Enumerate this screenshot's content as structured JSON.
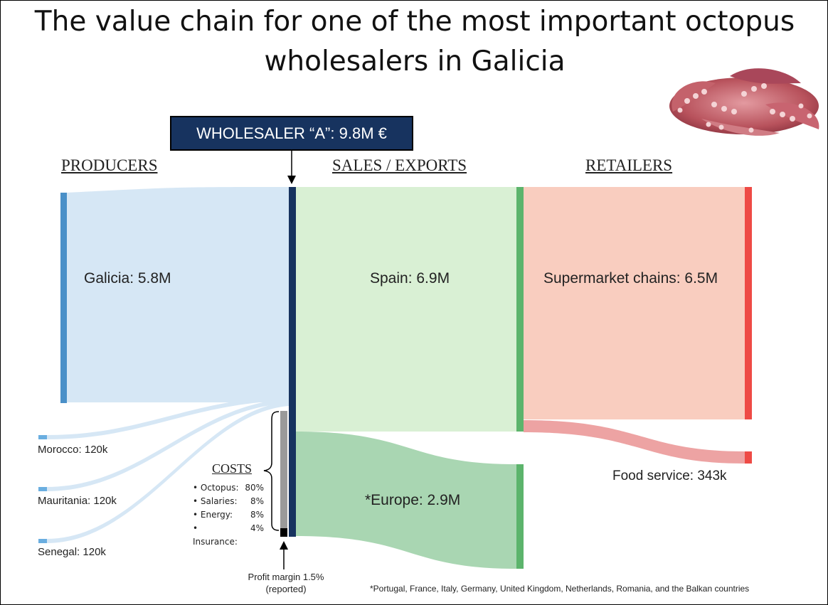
{
  "title": "The value chain for one of the most important octopus wholesalers in Galicia",
  "title_lines": [
    "The value chain for one of the most important octopus",
    "wholesalers in Galicia"
  ],
  "wholesaler": "WHOLESALER “A”: 9.8M €",
  "columns": {
    "producers": "PRODUCERS",
    "sales": "SALES / EXPORTS",
    "retailers": "RETAILERS"
  },
  "producers": [
    {
      "label": "Galicia: 5.8M",
      "value": 5800000
    },
    {
      "label": "Morocco: 120k",
      "value": 120000
    },
    {
      "label": "Mauritania: 120k",
      "value": 120000
    },
    {
      "label": "Senegal: 120k",
      "value": 120000
    }
  ],
  "sales": [
    {
      "label": "Spain: 6.9M",
      "value": 6900000
    },
    {
      "label": "*Europe: 2.9M",
      "value": 2900000
    }
  ],
  "retailers": [
    {
      "label": "Supermarket chains: 6.5M",
      "value": 6500000
    },
    {
      "label": "Food service: 343k",
      "value": 343000
    }
  ],
  "costs": {
    "title": "COSTS",
    "items": [
      {
        "name": "• Octopus:",
        "value": "80%"
      },
      {
        "name": "• Salaries:",
        "value": "8%"
      },
      {
        "name": "• Energy:",
        "value": "8%"
      },
      {
        "name": "• Insurance:",
        "value": "4%"
      }
    ]
  },
  "profit": {
    "line1": "Profit margin 1.5%",
    "line2": "(reported)"
  },
  "footnote": "*Portugal, France, Italy, Germany, United Kingdom, Netherlands, Romania, and the Balkan countries",
  "colors": {
    "producer_bar": "#4a90c8",
    "producer_flow": "#d6e7f5",
    "wholesaler": "#17335f",
    "sales_bar": "#5cb46c",
    "spain_flow": "#d9f0d4",
    "europe_flow": "#a9d6b2",
    "retail_bar": "#ee4a45",
    "supermarket_flow": "#f9cdbf",
    "food_flow": "#eda3a3",
    "cost_bar": "#9a9a9a",
    "profit_bar": "#000000"
  }
}
